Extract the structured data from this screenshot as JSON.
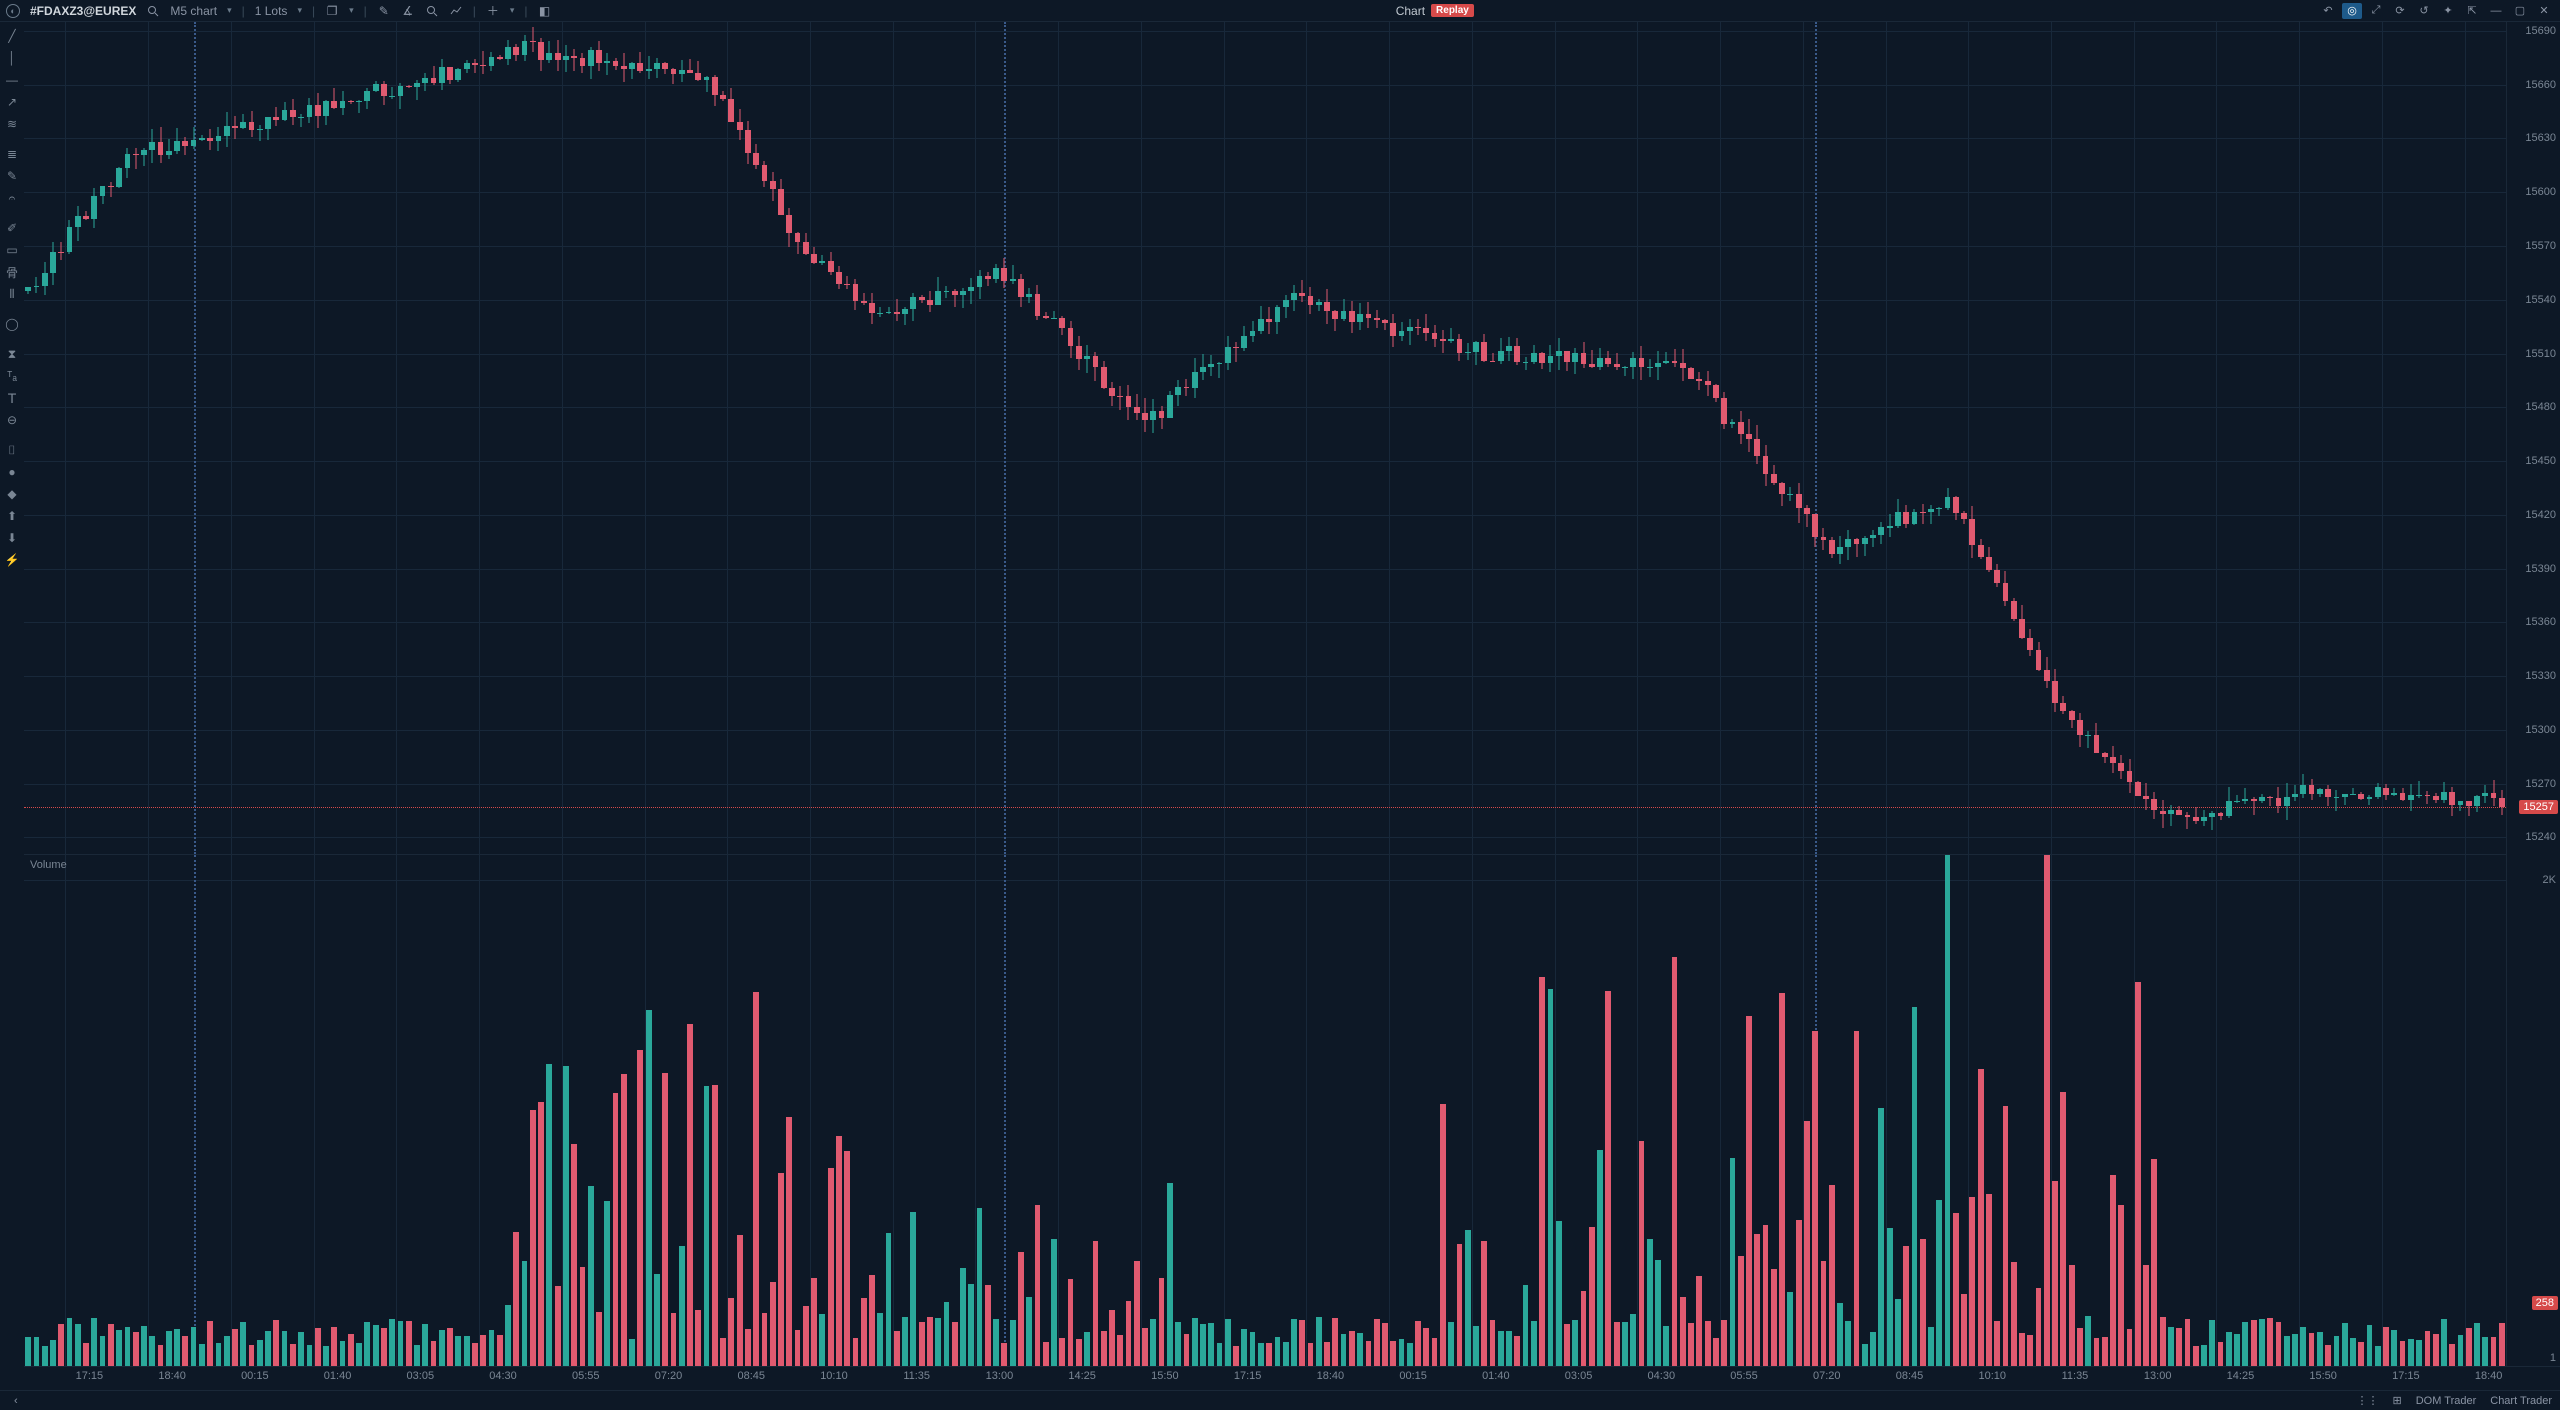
{
  "colors": {
    "bg": "#0d1826",
    "panel_border": "#1a2838",
    "grid": "#18283a",
    "text": "#a0a8b4",
    "text_dim": "#7a8694",
    "up": "#2aa89a",
    "down": "#e05a70",
    "session_line": "#3a5a8a",
    "last_price_line": "#d64a4a",
    "replay_badge": "#d64a4a",
    "accent_on": "#1e5a8a"
  },
  "titlebar": {
    "symbol": "#FDAXZ3@EUREX",
    "search_icon": "search",
    "timeframe": "M5 chart",
    "lots": "1 Lots",
    "icons": [
      "window",
      "grid",
      "pencil",
      "angle",
      "zoom",
      "analytics",
      "plus",
      "layout"
    ],
    "center_label": "Chart",
    "replay_label": "Replay",
    "right_icons": [
      "undo-icon",
      "target-icon",
      "expand-icon",
      "refresh-icon",
      "reset-icon",
      "settings-icon",
      "dock-icon",
      "minimize-icon",
      "maximize-icon",
      "close-icon"
    ],
    "right_icon_on_index": 1
  },
  "toolbar_left": [
    "diag-line",
    "vert-line",
    "horiz-line",
    "arrow",
    "channels",
    "fib",
    "pencil",
    "brush",
    "marker",
    "shape-rect",
    "shape-align",
    "shape-bars",
    "shape-ellipse",
    "time-label",
    "text-label",
    "text-big",
    "remove",
    "screenshot",
    "dot-fill",
    "diamond",
    "arrow-up",
    "arrow-down",
    "bolt"
  ],
  "price_pane": {
    "type": "candlestick",
    "y_min": 15230,
    "y_max": 15695,
    "y_ticks": [
      15690,
      15660,
      15630,
      15600,
      15570,
      15540,
      15510,
      15480,
      15450,
      15420,
      15390,
      15360,
      15330,
      15300,
      15270,
      15240
    ],
    "last_price": 15257,
    "last_price_marker": "15257",
    "session_boundaries_idx": [
      20,
      118,
      216
    ]
  },
  "volume_pane": {
    "label": "Volume",
    "y_max": 2100,
    "y_tick_label": "2K",
    "y_tick_value": 2000,
    "last_vol_marker": "258",
    "last_vol_value": 258
  },
  "x_axis": {
    "labels": [
      "17:15",
      "18:40",
      "00:15",
      "01:40",
      "03:05",
      "04:30",
      "05:55",
      "07:20",
      "08:45",
      "10:10",
      "11:35",
      "13:00",
      "14:25",
      "15:50",
      "17:15",
      "18:40",
      "00:15",
      "01:40",
      "03:05",
      "04:30",
      "05:55",
      "07:20",
      "08:45",
      "10:10",
      "11:35",
      "13:00",
      "14:25",
      "15:50",
      "17:15",
      "18:40"
    ]
  },
  "statusbar": {
    "left_icon": "arrow-left",
    "items": [
      "⋮⋮",
      "⊞",
      "DOM Trader",
      "Chart Trader"
    ]
  },
  "candles_n": 300,
  "chart_seed": 777
}
